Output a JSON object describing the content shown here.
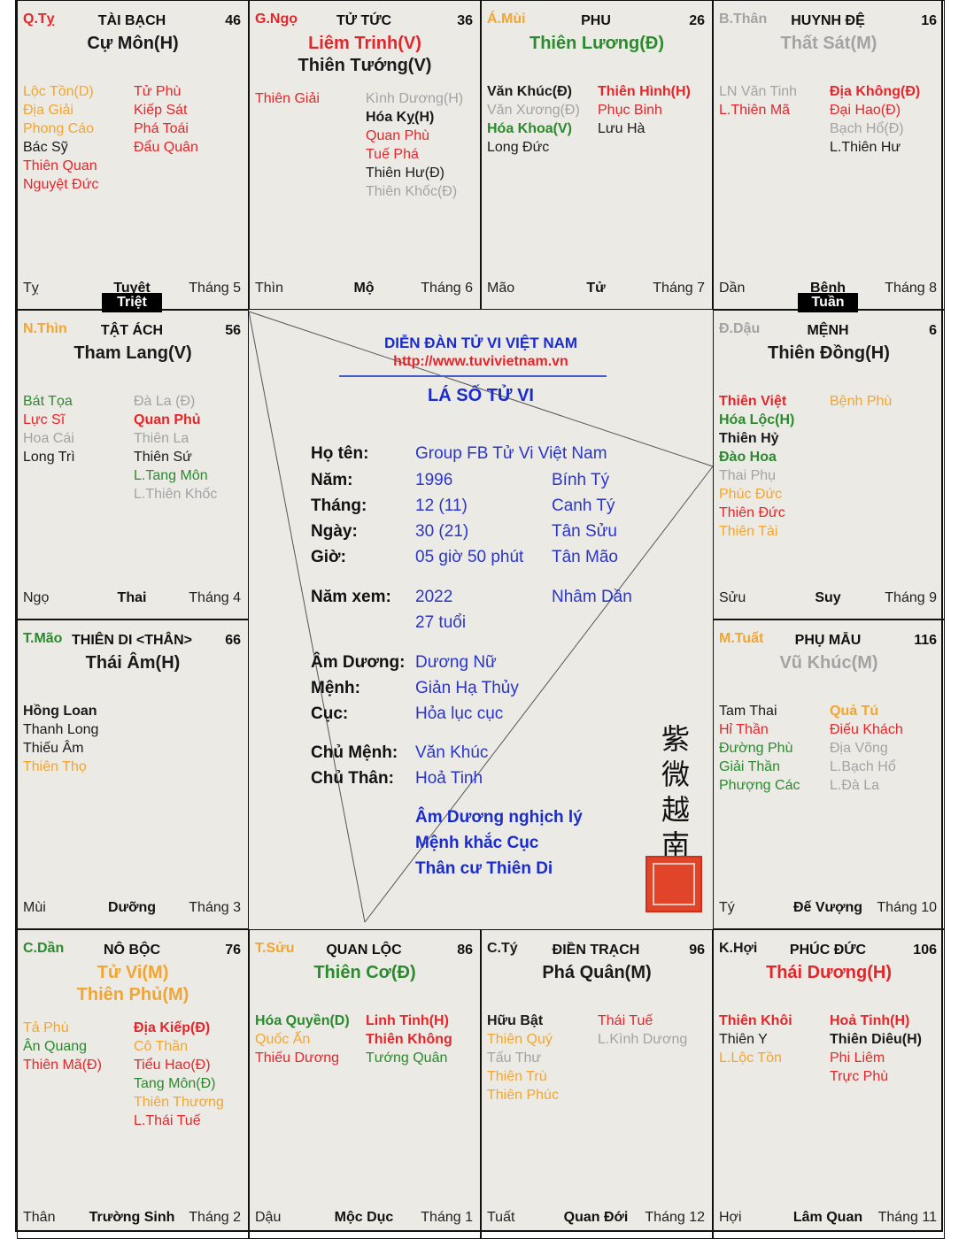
{
  "colors": {
    "red": "#e4262b",
    "orange": "#f2a531",
    "green": "#2b8a2e",
    "gray": "#a3a3a3",
    "black": "#1a1a1a",
    "blue": "#1a2ccc"
  },
  "badges": {
    "triet": "Triệt",
    "tuan": "Tuần"
  },
  "cells": [
    {
      "canchi": "Q.Tỵ",
      "canchi_color": "red",
      "palace": "TÀI BẠCH",
      "num": "46",
      "main": [
        {
          "t": "Cự Môn(H)",
          "c": "black"
        }
      ],
      "left": [
        {
          "t": "Lộc Tồn(D)",
          "c": "orange"
        },
        {
          "t": "Địa Giải",
          "c": "orange"
        },
        {
          "t": "Phong Cáo",
          "c": "orange"
        },
        {
          "t": "Bác Sỹ",
          "c": "black"
        },
        {
          "t": "Thiên Quan",
          "c": "red"
        },
        {
          "t": "Nguyệt Đức",
          "c": "red"
        }
      ],
      "right": [
        {
          "t": "Tử Phù",
          "c": "red"
        },
        {
          "t": "Kiếp Sát",
          "c": "red"
        },
        {
          "t": "Phá Toái",
          "c": "red"
        },
        {
          "t": "Đẩu Quân",
          "c": "red"
        }
      ],
      "branch": "Tỵ",
      "stage": "Tuyệt",
      "month": "Tháng 5"
    },
    {
      "canchi": "G.Ngọ",
      "canchi_color": "red",
      "palace": "TỬ TỨC",
      "num": "36",
      "main": [
        {
          "t": "Liêm Trinh(V)",
          "c": "red"
        },
        {
          "t": "Thiên Tướng(V)",
          "c": "black"
        }
      ],
      "left": [
        {
          "t": "Thiên Giải",
          "c": "red"
        }
      ],
      "right": [
        {
          "t": "Kình Dương(H)",
          "c": "gray"
        },
        {
          "t": "Hóa Kỵ(H)",
          "c": "black",
          "b": true
        },
        {
          "t": "Quan Phù",
          "c": "red"
        },
        {
          "t": "Tuế Phá",
          "c": "red"
        },
        {
          "t": "Thiên Hư(Đ)",
          "c": "black"
        },
        {
          "t": "Thiên Khốc(Đ)",
          "c": "gray"
        }
      ],
      "branch": "Thìn",
      "stage": "Mộ",
      "month": "Tháng 6"
    },
    {
      "canchi": "Á.Mùi",
      "canchi_color": "orange",
      "palace": "PHU",
      "num": "26",
      "main": [
        {
          "t": "Thiên Lương(Đ)",
          "c": "green"
        }
      ],
      "left": [
        {
          "t": "Văn Khúc(Đ)",
          "c": "black",
          "b": true
        },
        {
          "t": "Văn Xương(Đ)",
          "c": "gray"
        },
        {
          "t": "Hóa Khoa(V)",
          "c": "green",
          "b": true
        },
        {
          "t": "Long Đức",
          "c": "black"
        }
      ],
      "right": [
        {
          "t": "Thiên Hình(H)",
          "c": "red",
          "b": true
        },
        {
          "t": "Phục Binh",
          "c": "red"
        },
        {
          "t": "Lưu Hà",
          "c": "black"
        }
      ],
      "branch": "Mão",
      "stage": "Tử",
      "month": "Tháng 7"
    },
    {
      "canchi": "B.Thân",
      "canchi_color": "gray",
      "palace": "HUYNH ĐỆ",
      "num": "16",
      "main": [
        {
          "t": "Thất Sát(M)",
          "c": "gray"
        }
      ],
      "left": [
        {
          "t": "LN Văn Tinh",
          "c": "gray"
        },
        {
          "t": "L.Thiên Mã",
          "c": "red"
        }
      ],
      "right": [
        {
          "t": "Địa Không(Đ)",
          "c": "red",
          "b": true
        },
        {
          "t": "Đại Hao(Đ)",
          "c": "red"
        },
        {
          "t": "Bạch Hổ(Đ)",
          "c": "gray"
        },
        {
          "t": "L.Thiên Hư",
          "c": "black"
        }
      ],
      "branch": "Dần",
      "stage": "Bệnh",
      "month": "Tháng 8"
    },
    {
      "canchi": "N.Thìn",
      "canchi_color": "orange",
      "palace": "TẬT ÁCH",
      "num": "56",
      "main": [
        {
          "t": "Tham Lang(V)",
          "c": "black"
        }
      ],
      "left": [
        {
          "t": "Bát Tọa",
          "c": "green"
        },
        {
          "t": "Lực Sĩ",
          "c": "red"
        },
        {
          "t": "Hoa Cái",
          "c": "gray"
        },
        {
          "t": "Long Trì",
          "c": "black"
        }
      ],
      "right": [
        {
          "t": "Đà La (Đ)",
          "c": "gray"
        },
        {
          "t": "Quan Phủ",
          "c": "red",
          "b": true
        },
        {
          "t": "Thiên La",
          "c": "gray"
        },
        {
          "t": "Thiên Sứ",
          "c": "black"
        },
        {
          "t": "L.Tang Môn",
          "c": "green"
        },
        {
          "t": "L.Thiên Khốc",
          "c": "gray"
        }
      ],
      "branch": "Ngọ",
      "stage": "Thai",
      "month": "Tháng 4"
    },
    {
      "canchi": "Đ.Dậu",
      "canchi_color": "gray",
      "palace": "MỆNH",
      "num": "6",
      "main": [
        {
          "t": "Thiên Đồng(H)",
          "c": "black"
        }
      ],
      "left": [
        {
          "t": "Thiên Việt",
          "c": "red",
          "b": true
        },
        {
          "t": "Hóa Lộc(H)",
          "c": "green",
          "b": true
        },
        {
          "t": "Thiên Hỷ",
          "c": "black",
          "b": true
        },
        {
          "t": "Đào Hoa",
          "c": "green",
          "b": true
        },
        {
          "t": "Thai Phụ",
          "c": "gray"
        },
        {
          "t": "Phúc Đức",
          "c": "orange"
        },
        {
          "t": "Thiên Đức",
          "c": "red"
        },
        {
          "t": "Thiên Tài",
          "c": "orange"
        }
      ],
      "right": [
        {
          "t": "Bệnh Phù",
          "c": "orange"
        }
      ],
      "branch": "Sửu",
      "stage": "Suy",
      "month": "Tháng 9"
    },
    {
      "canchi": "T.Mão",
      "canchi_color": "green",
      "palace": "THIÊN DI <THÂN>",
      "num": "66",
      "main": [
        {
          "t": "Thái Âm(H)",
          "c": "black"
        }
      ],
      "left": [
        {
          "t": "Hồng Loan",
          "c": "black",
          "b": true
        },
        {
          "t": "Thanh Long",
          "c": "black"
        },
        {
          "t": "Thiếu Âm",
          "c": "black"
        },
        {
          "t": "Thiên Thọ",
          "c": "orange"
        }
      ],
      "right": [],
      "branch": "Mùi",
      "stage": "Dưỡng",
      "month": "Tháng 3"
    },
    {
      "canchi": "M.Tuất",
      "canchi_color": "orange",
      "palace": "PHỤ MẪU",
      "num": "116",
      "main": [
        {
          "t": "Vũ Khúc(M)",
          "c": "gray"
        }
      ],
      "left": [
        {
          "t": "Tam Thai",
          "c": "black"
        },
        {
          "t": "Hỉ Thần",
          "c": "red"
        },
        {
          "t": "Đường Phù",
          "c": "green"
        },
        {
          "t": "Giải Thần",
          "c": "green"
        },
        {
          "t": "Phượng Các",
          "c": "green"
        }
      ],
      "right": [
        {
          "t": "Quả Tú",
          "c": "orange",
          "b": true
        },
        {
          "t": "Điếu Khách",
          "c": "red"
        },
        {
          "t": "Địa Võng",
          "c": "gray"
        },
        {
          "t": "L.Bạch Hổ",
          "c": "gray"
        },
        {
          "t": "L.Đà La",
          "c": "gray"
        }
      ],
      "branch": "Tý",
      "stage": "Đế Vượng",
      "month": "Tháng 10"
    },
    {
      "canchi": "C.Dần",
      "canchi_color": "green",
      "palace": "NÔ BỘC",
      "num": "76",
      "main": [
        {
          "t": "Tử Vi(M)",
          "c": "orange"
        },
        {
          "t": "Thiên Phủ(M)",
          "c": "orange"
        }
      ],
      "left": [
        {
          "t": "Tả Phù",
          "c": "orange"
        },
        {
          "t": "Ân Quang",
          "c": "green"
        },
        {
          "t": "Thiên Mã(Đ)",
          "c": "red"
        }
      ],
      "right": [
        {
          "t": "Địa Kiếp(Đ)",
          "c": "red",
          "b": true
        },
        {
          "t": "Cô Thần",
          "c": "orange"
        },
        {
          "t": "Tiểu Hao(Đ)",
          "c": "red"
        },
        {
          "t": "Tang Môn(Đ)",
          "c": "green"
        },
        {
          "t": "Thiên Thương",
          "c": "orange"
        },
        {
          "t": "L.Thái Tuế",
          "c": "red"
        }
      ],
      "branch": "Thân",
      "stage": "Trường Sinh",
      "month": "Tháng 2"
    },
    {
      "canchi": "T.Sửu",
      "canchi_color": "orange",
      "palace": "QUAN LỘC",
      "num": "86",
      "main": [
        {
          "t": "Thiên Cơ(Đ)",
          "c": "green"
        }
      ],
      "left": [
        {
          "t": "Hóa Quyền(D)",
          "c": "green",
          "b": true
        },
        {
          "t": "Quốc Ấn",
          "c": "orange"
        },
        {
          "t": "Thiếu Dương",
          "c": "red"
        }
      ],
      "right": [
        {
          "t": "Linh Tinh(H)",
          "c": "red",
          "b": true
        },
        {
          "t": "Thiên Không",
          "c": "red",
          "b": true
        },
        {
          "t": "Tướng Quân",
          "c": "green"
        }
      ],
      "branch": "Dậu",
      "stage": "Mộc Dục",
      "month": "Tháng 1"
    },
    {
      "canchi": "C.Tý",
      "canchi_color": "black",
      "palace": "ĐIỀN TRẠCH",
      "num": "96",
      "main": [
        {
          "t": "Phá Quân(M)",
          "c": "black"
        }
      ],
      "left": [
        {
          "t": "Hữu Bật",
          "c": "black",
          "b": true
        },
        {
          "t": "Thiên Quý",
          "c": "orange"
        },
        {
          "t": "Tấu Thư",
          "c": "gray"
        },
        {
          "t": "Thiên Trù",
          "c": "orange"
        },
        {
          "t": "Thiên Phúc",
          "c": "orange"
        }
      ],
      "right": [
        {
          "t": "Thái Tuế",
          "c": "red"
        },
        {
          "t": "L.Kình Dương",
          "c": "gray"
        }
      ],
      "branch": "Tuất",
      "stage": "Quan Đới",
      "month": "Tháng 12"
    },
    {
      "canchi": "K.Hợi",
      "canchi_color": "black",
      "palace": "PHÚC ĐỨC",
      "num": "106",
      "main": [
        {
          "t": "Thái Dương(H)",
          "c": "red"
        }
      ],
      "left": [
        {
          "t": "Thiên Khôi",
          "c": "red",
          "b": true
        },
        {
          "t": "Thiên Y",
          "c": "black"
        },
        {
          "t": "L.Lộc Tồn",
          "c": "orange"
        }
      ],
      "right": [
        {
          "t": "Hoả Tinh(H)",
          "c": "red",
          "b": true
        },
        {
          "t": "Thiên Diêu(H)",
          "c": "black",
          "b": true
        },
        {
          "t": "Phi Liêm",
          "c": "red"
        },
        {
          "t": "Trực Phù",
          "c": "red"
        }
      ],
      "branch": "Hợi",
      "stage": "Lâm Quan",
      "month": "Tháng 11"
    }
  ],
  "center": {
    "forum": "DIỄN ĐÀN TỬ VI VIỆT NAM",
    "url": "http://www.tuvivietnam.vn",
    "title": "LÁ SỐ TỬ VI",
    "rows": [
      {
        "label": "Họ tên:",
        "v1": "Group FB Tử Vi Việt Nam",
        "v2": ""
      },
      {
        "label": "Năm:",
        "v1": "1996",
        "v2": "Bính Tý"
      },
      {
        "label": "Tháng:",
        "v1": "12 (11)",
        "v2": "Canh Tý"
      },
      {
        "label": "Ngày:",
        "v1": "30 (21)",
        "v2": "Tân Sửu"
      },
      {
        "label": "Giờ:",
        "v1": "05 giờ 50 phút",
        "v2": "Tân Mão"
      },
      {
        "label": "Năm xem:",
        "v1": "2022",
        "v2": "Nhâm Dần"
      },
      {
        "label": "",
        "v1": "27 tuổi",
        "v2": ""
      },
      {
        "label": "Âm Dương:",
        "v1": "Dương Nữ",
        "v2": ""
      },
      {
        "label": "Mệnh:",
        "v1": "Giản Hạ Thủy",
        "v2": ""
      },
      {
        "label": "Cục:",
        "v1": "Hỏa lục cục",
        "v2": ""
      },
      {
        "label": "Chủ Mệnh:",
        "v1": "Văn Khúc",
        "v2": ""
      },
      {
        "label": "Chủ Thân:",
        "v1": "Hoả Tinh",
        "v2": ""
      }
    ],
    "notes": [
      "Âm Dương nghịch lý",
      "Mệnh khắc Cục",
      "Thân cư Thiên Di"
    ],
    "calligraphy": [
      "紫",
      "微",
      "越",
      "南"
    ]
  }
}
